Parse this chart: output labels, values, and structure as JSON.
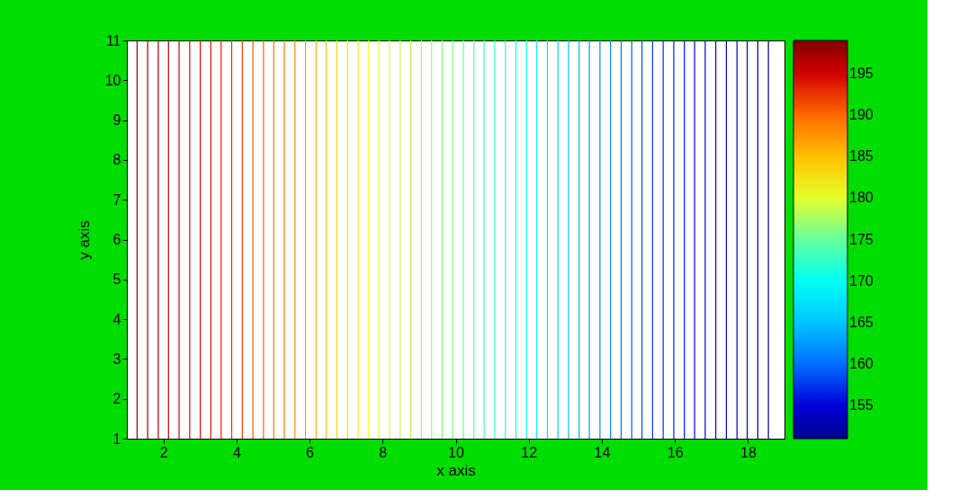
{
  "chart_data": {
    "type": "line",
    "xlabel": "x axis",
    "ylabel": "y axis",
    "xlim": [
      1,
      19
    ],
    "xticks": [
      2,
      4,
      6,
      8,
      10,
      12,
      14,
      16,
      18
    ],
    "ylim": [
      1,
      11
    ],
    "yticks": [
      1,
      2,
      3,
      4,
      5,
      6,
      7,
      8,
      9,
      10,
      11
    ],
    "clim": [
      151,
      199
    ],
    "cticks": [
      155,
      160,
      165,
      170,
      175,
      180,
      185,
      190,
      195
    ],
    "grid": false,
    "series": [
      {
        "x": [
          1.28,
          1.28
        ],
        "values": [
          1,
          11
        ],
        "color": "#950000"
      },
      {
        "x": [
          1.57,
          1.57
        ],
        "values": [
          1,
          11
        ],
        "color": "#a50000"
      },
      {
        "x": [
          1.86,
          1.86
        ],
        "values": [
          1,
          11
        ],
        "color": "#b60000"
      },
      {
        "x": [
          2.14,
          2.14
        ],
        "values": [
          1,
          11
        ],
        "color": "#c60000"
      },
      {
        "x": [
          2.43,
          2.43
        ],
        "values": [
          1,
          11
        ],
        "color": "#d70000"
      },
      {
        "x": [
          2.72,
          2.72
        ],
        "values": [
          1,
          11
        ],
        "color": "#e70000"
      },
      {
        "x": [
          3.01,
          3.01
        ],
        "values": [
          1,
          11
        ],
        "color": "#f80000"
      },
      {
        "x": [
          3.3,
          3.3
        ],
        "values": [
          1,
          11
        ],
        "color": "#ff0a00"
      },
      {
        "x": [
          3.58,
          3.58
        ],
        "values": [
          1,
          11
        ],
        "color": "#ff1a00"
      },
      {
        "x": [
          3.87,
          3.87
        ],
        "values": [
          1,
          11
        ],
        "color": "#ff2b00"
      },
      {
        "x": [
          4.16,
          4.16
        ],
        "values": [
          1,
          11
        ],
        "color": "#ff3b00"
      },
      {
        "x": [
          4.45,
          4.45
        ],
        "values": [
          1,
          11
        ],
        "color": "#ff4c00"
      },
      {
        "x": [
          4.74,
          4.74
        ],
        "values": [
          1,
          11
        ],
        "color": "#ff5d00"
      },
      {
        "x": [
          5.02,
          5.02
        ],
        "values": [
          1,
          11
        ],
        "color": "#ff6d00"
      },
      {
        "x": [
          5.31,
          5.31
        ],
        "values": [
          1,
          11
        ],
        "color": "#ff7e00"
      },
      {
        "x": [
          5.6,
          5.6
        ],
        "values": [
          1,
          11
        ],
        "color": "#ff8e00"
      },
      {
        "x": [
          5.89,
          5.89
        ],
        "values": [
          1,
          11
        ],
        "color": "#ff9f00"
      },
      {
        "x": [
          6.18,
          6.18
        ],
        "values": [
          1,
          11
        ],
        "color": "#ffaf00"
      },
      {
        "x": [
          6.46,
          6.46
        ],
        "values": [
          1,
          11
        ],
        "color": "#ffc000"
      },
      {
        "x": [
          6.75,
          6.75
        ],
        "values": [
          1,
          11
        ],
        "color": "#ffd100"
      },
      {
        "x": [
          7.04,
          7.04
        ],
        "values": [
          1,
          11
        ],
        "color": "#ffe100"
      },
      {
        "x": [
          7.33,
          7.33
        ],
        "values": [
          1,
          11
        ],
        "color": "#fff200"
      },
      {
        "x": [
          7.62,
          7.62
        ],
        "values": [
          1,
          11
        ],
        "color": "#fcff03"
      },
      {
        "x": [
          7.9,
          7.9
        ],
        "values": [
          1,
          11
        ],
        "color": "#ebff14"
      },
      {
        "x": [
          8.19,
          8.19
        ],
        "values": [
          1,
          11
        ],
        "color": "#dbff24"
      },
      {
        "x": [
          8.48,
          8.48
        ],
        "values": [
          1,
          11
        ],
        "color": "#caff35"
      },
      {
        "x": [
          8.77,
          8.77
        ],
        "values": [
          1,
          11
        ],
        "color": "#b9ff46"
      },
      {
        "x": [
          9.06,
          9.06
        ],
        "values": [
          1,
          11
        ],
        "color": "#a9ff56"
      },
      {
        "x": [
          9.34,
          9.34
        ],
        "values": [
          1,
          11
        ],
        "color": "#98ff67"
      },
      {
        "x": [
          9.63,
          9.63
        ],
        "values": [
          1,
          11
        ],
        "color": "#88ff77"
      },
      {
        "x": [
          9.92,
          9.92
        ],
        "values": [
          1,
          11
        ],
        "color": "#77ff88"
      },
      {
        "x": [
          10.21,
          10.21
        ],
        "values": [
          1,
          11
        ],
        "color": "#66ff98"
      },
      {
        "x": [
          10.5,
          10.5
        ],
        "values": [
          1,
          11
        ],
        "color": "#56ffa9"
      },
      {
        "x": [
          10.78,
          10.78
        ],
        "values": [
          1,
          11
        ],
        "color": "#45ffb9"
      },
      {
        "x": [
          11.07,
          11.07
        ],
        "values": [
          1,
          11
        ],
        "color": "#35ffca"
      },
      {
        "x": [
          11.36,
          11.36
        ],
        "values": [
          1,
          11
        ],
        "color": "#24ffdb"
      },
      {
        "x": [
          11.65,
          11.65
        ],
        "values": [
          1,
          11
        ],
        "color": "#14ffeb"
      },
      {
        "x": [
          11.94,
          11.94
        ],
        "values": [
          1,
          11
        ],
        "color": "#03fffc"
      },
      {
        "x": [
          12.22,
          12.22
        ],
        "values": [
          1,
          11
        ],
        "color": "#00f1ff"
      },
      {
        "x": [
          12.51,
          12.51
        ],
        "values": [
          1,
          11
        ],
        "color": "#00e1ff"
      },
      {
        "x": [
          12.8,
          12.8
        ],
        "values": [
          1,
          11
        ],
        "color": "#00d0ff"
      },
      {
        "x": [
          13.09,
          13.09
        ],
        "values": [
          1,
          11
        ],
        "color": "#00c0ff"
      },
      {
        "x": [
          13.38,
          13.38
        ],
        "values": [
          1,
          11
        ],
        "color": "#00afff"
      },
      {
        "x": [
          13.66,
          13.66
        ],
        "values": [
          1,
          11
        ],
        "color": "#009fff"
      },
      {
        "x": [
          13.95,
          13.95
        ],
        "values": [
          1,
          11
        ],
        "color": "#008eff"
      },
      {
        "x": [
          14.24,
          14.24
        ],
        "values": [
          1,
          11
        ],
        "color": "#007dff"
      },
      {
        "x": [
          14.53,
          14.53
        ],
        "values": [
          1,
          11
        ],
        "color": "#006dff"
      },
      {
        "x": [
          14.82,
          14.82
        ],
        "values": [
          1,
          11
        ],
        "color": "#005cff"
      },
      {
        "x": [
          15.1,
          15.1
        ],
        "values": [
          1,
          11
        ],
        "color": "#004cff"
      },
      {
        "x": [
          15.39,
          15.39
        ],
        "values": [
          1,
          11
        ],
        "color": "#003bff"
      },
      {
        "x": [
          15.68,
          15.68
        ],
        "values": [
          1,
          11
        ],
        "color": "#002bff"
      },
      {
        "x": [
          15.97,
          15.97
        ],
        "values": [
          1,
          11
        ],
        "color": "#001aff"
      },
      {
        "x": [
          16.26,
          16.26
        ],
        "values": [
          1,
          11
        ],
        "color": "#0009ff"
      },
      {
        "x": [
          16.54,
          16.54
        ],
        "values": [
          1,
          11
        ],
        "color": "#0000f8"
      },
      {
        "x": [
          16.83,
          16.83
        ],
        "values": [
          1,
          11
        ],
        "color": "#0000e7"
      },
      {
        "x": [
          17.12,
          17.12
        ],
        "values": [
          1,
          11
        ],
        "color": "#0000d7"
      },
      {
        "x": [
          17.41,
          17.41
        ],
        "values": [
          1,
          11
        ],
        "color": "#0000c6"
      },
      {
        "x": [
          17.7,
          17.7
        ],
        "values": [
          1,
          11
        ],
        "color": "#0000b6"
      },
      {
        "x": [
          17.98,
          17.98
        ],
        "values": [
          1,
          11
        ],
        "color": "#0000a5"
      },
      {
        "x": [
          18.27,
          18.27
        ],
        "values": [
          1,
          11
        ],
        "color": "#000094"
      },
      {
        "x": [
          18.56,
          18.56
        ],
        "values": [
          1,
          11
        ],
        "color": "#000084"
      }
    ]
  }
}
